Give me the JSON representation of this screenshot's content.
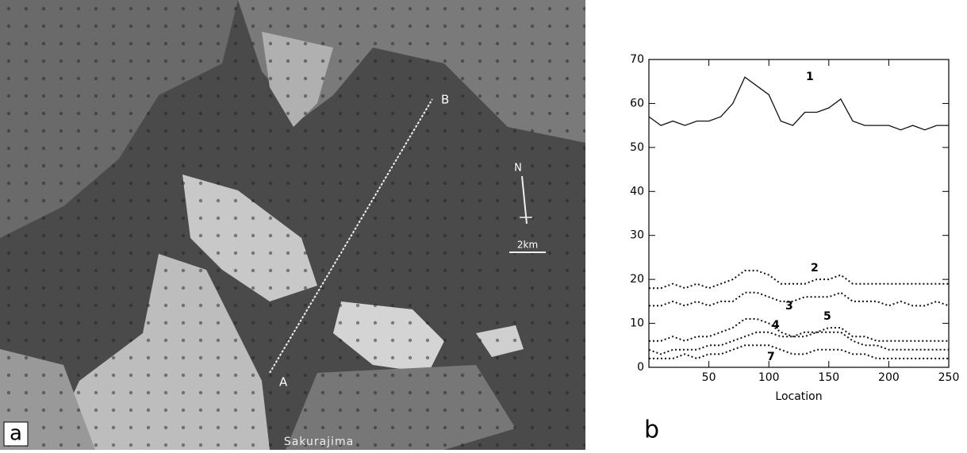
{
  "image": {
    "panel_label": "a",
    "place": "Sakurajima",
    "point_a": "A",
    "point_b": "B",
    "north": "N",
    "scale": "2km"
  },
  "chart_data": {
    "type": "line",
    "panel_label": "b",
    "xlabel": "Location",
    "x": [
      0,
      10,
      20,
      30,
      40,
      50,
      60,
      70,
      80,
      90,
      100,
      110,
      120,
      130,
      140,
      150,
      160,
      170,
      180,
      190,
      200,
      210,
      220,
      230,
      240,
      250
    ],
    "xlim": [
      0,
      250
    ],
    "xticks": [
      50,
      100,
      150,
      200,
      250
    ],
    "ylim": [
      0,
      70
    ],
    "yticks": [
      0,
      10,
      20,
      30,
      40,
      50,
      60,
      70
    ],
    "series": [
      {
        "name": "1",
        "color": "#111111",
        "linestyle": "solid",
        "values": [
          57,
          55,
          56,
          55,
          56,
          56,
          57,
          60,
          66,
          64,
          62,
          56,
          55,
          58,
          58,
          59,
          61,
          56,
          55,
          55,
          55,
          54,
          55,
          54,
          55,
          55
        ]
      },
      {
        "name": "2",
        "color": "#111111",
        "linestyle": "dotted",
        "values": [
          18,
          18,
          19,
          18,
          19,
          18,
          19,
          20,
          22,
          22,
          21,
          19,
          19,
          19,
          20,
          20,
          21,
          19,
          19,
          19,
          19,
          19,
          19,
          19,
          19,
          19
        ]
      },
      {
        "name": "3",
        "color": "#111111",
        "linestyle": "dotted",
        "values": [
          14,
          14,
          15,
          14,
          15,
          14,
          15,
          15,
          17,
          17,
          16,
          15,
          15,
          16,
          16,
          16,
          17,
          15,
          15,
          15,
          14,
          15,
          14,
          14,
          15,
          14
        ]
      },
      {
        "name": "4",
        "color": "#111111",
        "linestyle": "dotted",
        "values": [
          6,
          6,
          7,
          6,
          7,
          7,
          8,
          9,
          11,
          11,
          10,
          8,
          7,
          8,
          8,
          9,
          9,
          7,
          7,
          6,
          6,
          6,
          6,
          6,
          6,
          6
        ]
      },
      {
        "name": "5",
        "color": "#111111",
        "linestyle": "dotted",
        "values": [
          4,
          3,
          4,
          4,
          4,
          5,
          5,
          6,
          7,
          8,
          8,
          7,
          7,
          7,
          8,
          8,
          8,
          6,
          5,
          5,
          4,
          4,
          4,
          4,
          4,
          4
        ]
      },
      {
        "name": "7",
        "color": "#111111",
        "linestyle": "dotted",
        "values": [
          2,
          2,
          2,
          3,
          2,
          3,
          3,
          4,
          5,
          5,
          5,
          4,
          3,
          3,
          4,
          4,
          4,
          3,
          3,
          2,
          2,
          2,
          2,
          2,
          2,
          2
        ]
      }
    ]
  }
}
